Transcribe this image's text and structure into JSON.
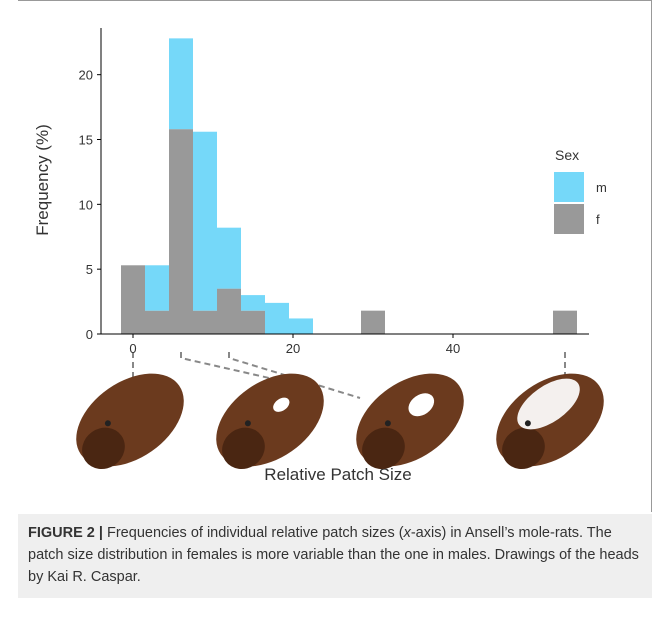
{
  "chart_data": {
    "type": "stacked-histogram",
    "x_label": "Relative Patch Size",
    "y_label": "Frequency (%)",
    "bins": [
      -1.5,
      1.5,
      4.5,
      7.5,
      10.5,
      13.5,
      16.5,
      19.5,
      22.5,
      25.5,
      28.5,
      31.5,
      34.5,
      37.5,
      40.5,
      43.5,
      46.5,
      49.5,
      52.5,
      55.5
    ],
    "series": [
      {
        "name": "f",
        "color": "#999999",
        "values": [
          5.3,
          1.8,
          15.8,
          1.8,
          3.5,
          1.8,
          0,
          0,
          0,
          0,
          1.8,
          0,
          0,
          0,
          0,
          0,
          0,
          0,
          1.8
        ]
      },
      {
        "name": "m",
        "color": "#75d8f9",
        "values": [
          0,
          3.5,
          7.0,
          13.8,
          4.7,
          1.2,
          2.4,
          1.2,
          0,
          0,
          0,
          0,
          0,
          0,
          0,
          0,
          0,
          0,
          0
        ]
      }
    ],
    "legend_title": "Sex",
    "xlim": [
      -4,
      57
    ],
    "xticks": [
      0,
      20,
      40
    ],
    "ylim": [
      0,
      23.6
    ],
    "yticks": [
      0,
      5,
      10,
      15,
      20
    ]
  },
  "caption": {
    "label": "FIGURE 2 |",
    "parts": [
      "Frequencies of individual relative patch sizes (",
      "x",
      "-axis) in Ansell’s mole-rats. The patch size distribution in females is more variable than the one in males. Drawings of the heads by Kai R. Caspar."
    ]
  }
}
